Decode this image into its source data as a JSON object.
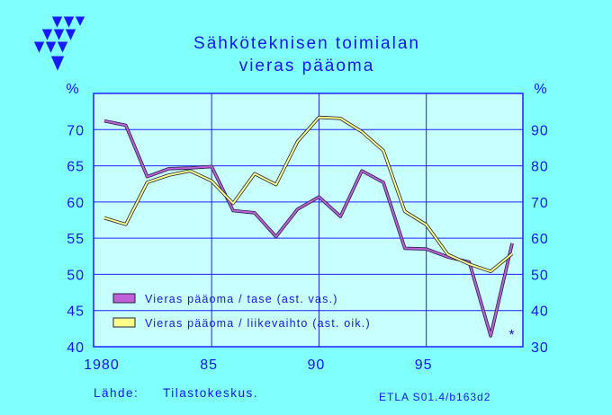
{
  "chart_data": {
    "type": "line",
    "title": [
      "Sähköteknisen toimialan",
      "vieras pääoma"
    ],
    "x": [
      1980,
      1981,
      1982,
      1983,
      1984,
      1985,
      1986,
      1987,
      1988,
      1989,
      1990,
      1991,
      1992,
      1993,
      1994,
      1995,
      1996,
      1997,
      1998,
      1999
    ],
    "x_ticks": [
      {
        "value": 1980,
        "label": "1980"
      },
      {
        "value": 1985,
        "label": "85"
      },
      {
        "value": 1990,
        "label": "90"
      },
      {
        "value": 1995,
        "label": "95"
      }
    ],
    "xlim": [
      1979.5,
      1999.5
    ],
    "left_axis": {
      "unit": "%",
      "ticks": [
        40,
        45,
        50,
        55,
        60,
        65,
        70
      ],
      "range": [
        40,
        75
      ]
    },
    "right_axis": {
      "unit": "%",
      "ticks": [
        30,
        40,
        50,
        60,
        70,
        80,
        90
      ],
      "range": [
        30,
        100
      ]
    },
    "grid": true,
    "legend_placement": "bottom-left inside plot",
    "series": [
      {
        "name": "Vieras pääoma / tase (ast. vas.)",
        "axis": "left",
        "color": "#c060d8",
        "values": [
          71.2,
          70.6,
          63.5,
          64.6,
          64.7,
          64.9,
          58.8,
          58.5,
          55.2,
          59.0,
          60.7,
          58.0,
          64.3,
          62.7,
          53.6,
          53.5,
          52.4,
          51.7,
          41.5,
          54.3
        ]
      },
      {
        "name": "Vieras pääoma / liikevaihto (ast. oik.)",
        "axis": "right",
        "color": "#ffff88",
        "values": [
          65.6,
          63.8,
          75.4,
          77.4,
          78.6,
          75.8,
          69.6,
          77.8,
          74.8,
          86.7,
          93.4,
          93.1,
          89.4,
          84.2,
          67.4,
          63.7,
          55.5,
          52.8,
          50.8,
          55.7
        ]
      }
    ],
    "annotation": "*"
  },
  "footer": {
    "source_label": "Lähde:",
    "source": "Tilastokeskus.",
    "code": "ETLA S01.4/b163d2"
  },
  "colors": {
    "background": "#80ffff",
    "plot_background": "#c8ffff",
    "text": "#1414f0",
    "grid": "#2020ff",
    "line_outline": "#202040"
  },
  "icons": {
    "logo": "triangle-logo"
  }
}
